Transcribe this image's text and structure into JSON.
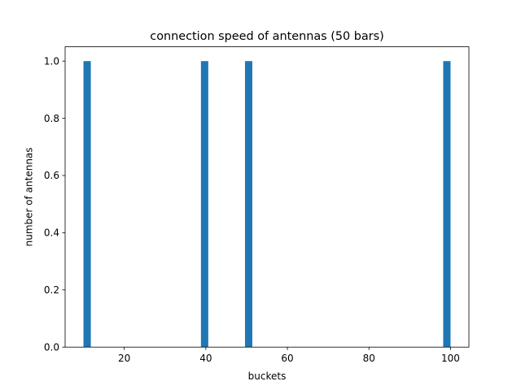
{
  "chart_data": {
    "type": "bar",
    "title": "connection speed of antennas (50 bars)",
    "xlabel": "buckets",
    "ylabel": "number of antennas",
    "xlim": [
      5.5,
      104.5
    ],
    "ylim": [
      0,
      1.05
    ],
    "bin_range": [
      10,
      100
    ],
    "bin_count": 50,
    "x_ticks": [
      20,
      40,
      60,
      80,
      100
    ],
    "y_ticks": [
      0.0,
      0.2,
      0.4,
      0.6,
      0.8,
      1.0
    ],
    "x_tick_labels": [
      "20",
      "40",
      "60",
      "80",
      "100"
    ],
    "y_tick_labels": [
      "0.0",
      "0.2",
      "0.4",
      "0.6",
      "0.8",
      "1.0"
    ],
    "bars": [
      {
        "x_start": 10.0,
        "x_end": 11.8,
        "value": 1
      },
      {
        "x_start": 38.8,
        "x_end": 40.6,
        "value": 1
      },
      {
        "x_start": 49.6,
        "x_end": 51.4,
        "value": 1
      },
      {
        "x_start": 98.2,
        "x_end": 100.0,
        "value": 1
      }
    ],
    "bar_color": "#1f77b4",
    "grid": false,
    "legend": "none"
  }
}
